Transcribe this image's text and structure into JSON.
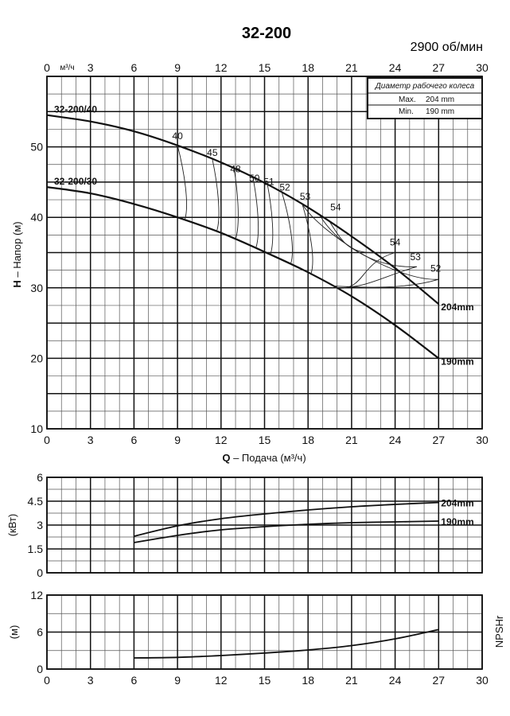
{
  "title": "32-200",
  "speed": "2900 об/мин",
  "impeller_box": {
    "title": "Диаметр рабочего колеса",
    "max_label": "Max.",
    "max_value": "204 mm",
    "min_label": "Min.",
    "min_value": "190 mm"
  },
  "chart_data": [
    {
      "type": "line",
      "panel": "head",
      "top_axis_unit": "м³/ч",
      "xlabel_prefix": "Q",
      "xlabel": " – Подача (м³/ч)",
      "ylabel_prefix": "H",
      "ylabel": " – Напор (м)",
      "xlim": [
        0,
        30
      ],
      "ylim": [
        10,
        60
      ],
      "x_ticks": [
        "0",
        "3",
        "6",
        "9",
        "12",
        "15",
        "18",
        "21",
        "24",
        "27",
        "30"
      ],
      "y_ticks": [
        "10",
        "20",
        "30",
        "40",
        "50"
      ],
      "grid": true,
      "series": [
        {
          "name": "32-200/40",
          "end_label": "204mm",
          "x": [
            0,
            3,
            6,
            9,
            12,
            15,
            18,
            21,
            24,
            27
          ],
          "y": [
            54.5,
            53.6,
            52.2,
            50.2,
            47.8,
            44.9,
            41.4,
            37.3,
            32.8,
            27.7
          ]
        },
        {
          "name": "32-200/30",
          "end_label": "190mm",
          "x": [
            0,
            3,
            6,
            9,
            12,
            15,
            18,
            21,
            24,
            27
          ],
          "y": [
            44.3,
            43.4,
            41.9,
            40.0,
            37.8,
            35.1,
            32.2,
            28.8,
            24.7,
            20.0
          ]
        }
      ],
      "efficiency_labels": [
        {
          "text": "40",
          "x": 9.0,
          "y": 51.1
        },
        {
          "text": "45",
          "x": 11.4,
          "y": 48.7
        },
        {
          "text": "48",
          "x": 13.0,
          "y": 46.4
        },
        {
          "text": "50",
          "x": 14.3,
          "y": 45.1
        },
        {
          "text": "51",
          "x": 15.3,
          "y": 44.6
        },
        {
          "text": "52",
          "x": 16.4,
          "y": 43.8
        },
        {
          "text": "53",
          "x": 17.8,
          "y": 42.5
        },
        {
          "text": "54",
          "x": 19.9,
          "y": 41.0
        },
        {
          "text": "54",
          "x": 24.0,
          "y": 36.0
        },
        {
          "text": "53",
          "x": 25.4,
          "y": 33.9
        },
        {
          "text": "52",
          "x": 26.8,
          "y": 32.3
        }
      ]
    },
    {
      "type": "line",
      "panel": "power",
      "ylabel": "(кВт)",
      "xlim": [
        0,
        30
      ],
      "ylim": [
        0,
        6
      ],
      "y_ticks": [
        "0",
        "1.5",
        "3",
        "4.5",
        "6"
      ],
      "grid": true,
      "series": [
        {
          "end_label": "204mm",
          "x": [
            6,
            9,
            12,
            15,
            18,
            21,
            24,
            27
          ],
          "y": [
            2.3,
            2.95,
            3.4,
            3.7,
            3.95,
            4.15,
            4.3,
            4.42
          ]
        },
        {
          "end_label": "190mm",
          "x": [
            6,
            9,
            12,
            15,
            18,
            21,
            24,
            27
          ],
          "y": [
            1.9,
            2.35,
            2.7,
            2.9,
            3.05,
            3.15,
            3.2,
            3.25
          ]
        }
      ]
    },
    {
      "type": "line",
      "panel": "npsh",
      "ylabel": "(м)",
      "right_label": "NPSHr",
      "xlim": [
        0,
        30
      ],
      "ylim": [
        0,
        12
      ],
      "x_ticks": [
        "0",
        "3",
        "6",
        "9",
        "12",
        "15",
        "18",
        "21",
        "24",
        "27",
        "30"
      ],
      "y_ticks": [
        "0",
        "6",
        "12"
      ],
      "grid": true,
      "series": [
        {
          "x": [
            6,
            9,
            12,
            15,
            18,
            21,
            24,
            27
          ],
          "y": [
            1.8,
            1.9,
            2.2,
            2.6,
            3.1,
            3.8,
            4.9,
            6.4
          ]
        }
      ]
    }
  ]
}
